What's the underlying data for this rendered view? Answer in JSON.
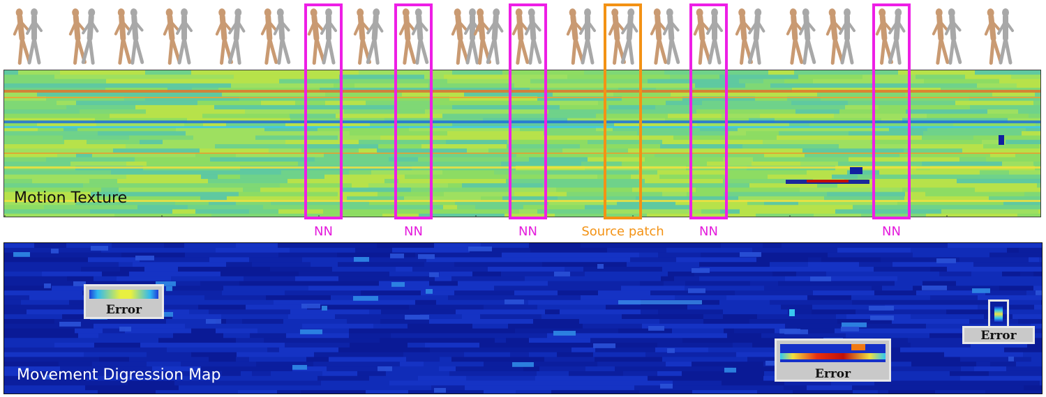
{
  "panels": {
    "motion_texture": "Motion Texture",
    "digression_map": "Movement Digression Map"
  },
  "tags": {
    "nn": "NN",
    "source": "Source patch"
  },
  "errors": {
    "label": "Error"
  },
  "colors": {
    "nn_highlight": "#ee1ee6",
    "source_highlight": "#f39214",
    "texture_base": "#8ddc63",
    "map_base": "#0a1a96"
  }
}
